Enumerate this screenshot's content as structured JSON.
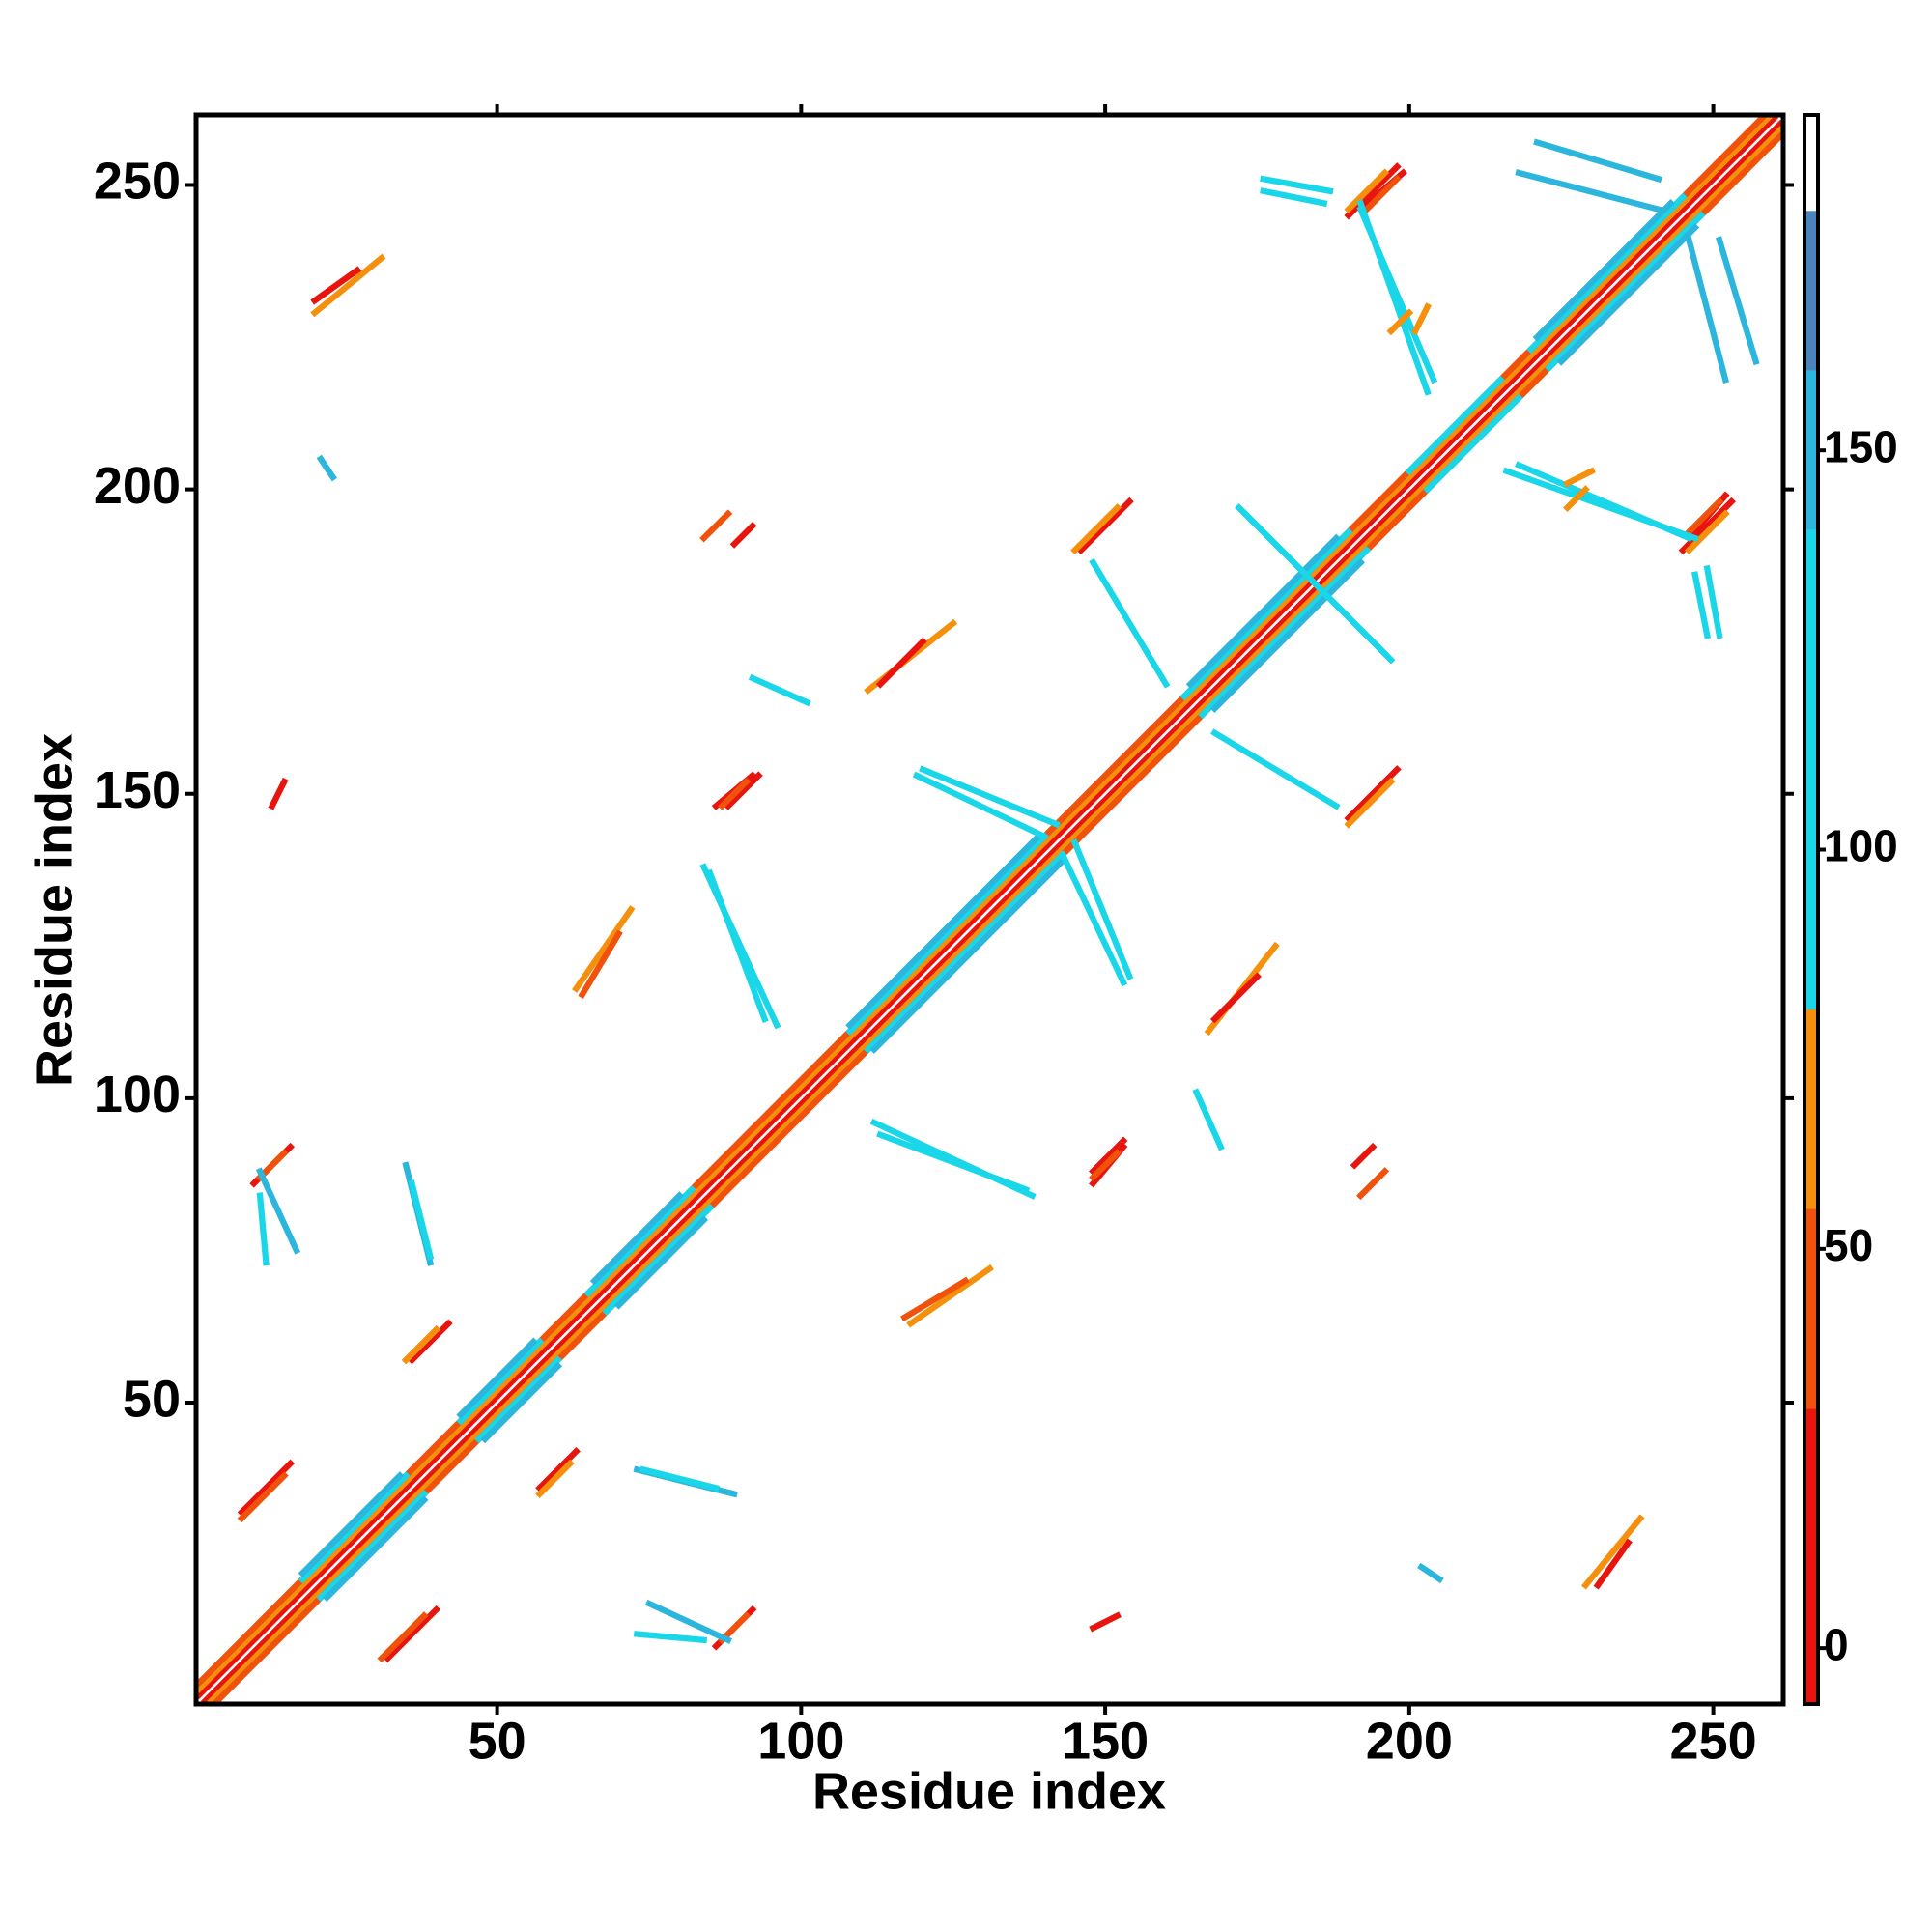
{
  "chart_data": {
    "type": "contact-map",
    "x_label": "Residue index",
    "y_label": "Residue index",
    "xlim": [
      0.5,
      261.5
    ],
    "ylim": [
      0.5,
      261.5
    ],
    "xticks": [
      50,
      100,
      150,
      200,
      250
    ],
    "yticks": [
      50,
      100,
      150,
      200,
      250
    ],
    "symmetric": true,
    "segments": [
      [
        1,
        2,
        260,
        261,
        5
      ],
      [
        1,
        3,
        259,
        261,
        65
      ],
      [
        1,
        4,
        258,
        261,
        40
      ],
      [
        18,
        21,
        35,
        38,
        100
      ],
      [
        18,
        22,
        34,
        38,
        150
      ],
      [
        44,
        47,
        57,
        60,
        100
      ],
      [
        44,
        48,
        56,
        60,
        150
      ],
      [
        65,
        68,
        82,
        85,
        100
      ],
      [
        66,
        70,
        80,
        84,
        150
      ],
      [
        108,
        111,
        140,
        143,
        100
      ],
      [
        108,
        112,
        139,
        143,
        150
      ],
      [
        163,
        166,
        190,
        193,
        100
      ],
      [
        164,
        168,
        188,
        192,
        150
      ],
      [
        200,
        203,
        215,
        218,
        100
      ],
      [
        220,
        223,
        245,
        248,
        100
      ],
      [
        221,
        225,
        243,
        247,
        150
      ],
      [
        86,
        10,
        92,
        16,
        5
      ],
      [
        87,
        11,
        91,
        15,
        40
      ],
      [
        32,
        8,
        40,
        16,
        5
      ],
      [
        31,
        8,
        38,
        15,
        40
      ],
      [
        36,
        57,
        42,
        63,
        5
      ],
      [
        35,
        57,
        40,
        62,
        65
      ],
      [
        148,
        86,
        153,
        92,
        5
      ],
      [
        88,
        148,
        93,
        153,
        5
      ],
      [
        87,
        148,
        91,
        152,
        40
      ],
      [
        146,
        190,
        154,
        198,
        5
      ],
      [
        145,
        190,
        152,
        197,
        65
      ],
      [
        190,
        245,
        198,
        253,
        5
      ],
      [
        190,
        246,
        196,
        252,
        65
      ],
      [
        246,
        192,
        252,
        199,
        5
      ],
      [
        246,
        193,
        251,
        198,
        40
      ],
      [
        20,
        229,
        31,
        238,
        65
      ],
      [
        20,
        231,
        27,
        236,
        5
      ],
      [
        63,
        118,
        72,
        131,
        65
      ],
      [
        64,
        117,
        70,
        127,
        40
      ],
      [
        111,
        167,
        125,
        178,
        65
      ],
      [
        113,
        168,
        120,
        175,
        5
      ],
      [
        84,
        192,
        88,
        196,
        40
      ],
      [
        85,
        137,
        94,
        113,
        100
      ],
      [
        112,
        96,
        138,
        84,
        100
      ],
      [
        120,
        154,
        142,
        145,
        100
      ],
      [
        143,
        140,
        153,
        119,
        100
      ],
      [
        168,
        160,
        188,
        148,
        100
      ],
      [
        172,
        197,
        196,
        173,
        100
      ],
      [
        192,
        246,
        204,
        218,
        100
      ],
      [
        218,
        252,
        241,
        246,
        150
      ],
      [
        251,
        241,
        257,
        221,
        150
      ],
      [
        216,
        203,
        247,
        192,
        100
      ],
      [
        247,
        186,
        249,
        176,
        100
      ],
      [
        176,
        251,
        187,
        249,
        100
      ],
      [
        92,
        169,
        101,
        165,
        100
      ],
      [
        11,
        88,
        17,
        75,
        150
      ],
      [
        35,
        89,
        39,
        73,
        150
      ],
      [
        74,
        39,
        86,
        36,
        100
      ],
      [
        73,
        12,
        84,
        11,
        100
      ],
      [
        191,
        89,
        194,
        92,
        5
      ],
      [
        148,
        13,
        152,
        15,
        5
      ],
      [
        226,
        201,
        230,
        203,
        65
      ],
      [
        197,
        226,
        200,
        229,
        65
      ],
      [
        202,
        23,
        205,
        21,
        150
      ]
    ],
    "colorbar": {
      "lim": [
        -7,
        192
      ],
      "ticks": [
        0,
        50,
        100,
        150
      ],
      "bins": [
        -7,
        30,
        55,
        80,
        140,
        160,
        180,
        192
      ],
      "colors": [
        "#e8140e",
        "#f0520c",
        "#f5900c",
        "#19d6e9",
        "#2cb6dd",
        "#4a84bb",
        "#ffffff"
      ]
    }
  }
}
